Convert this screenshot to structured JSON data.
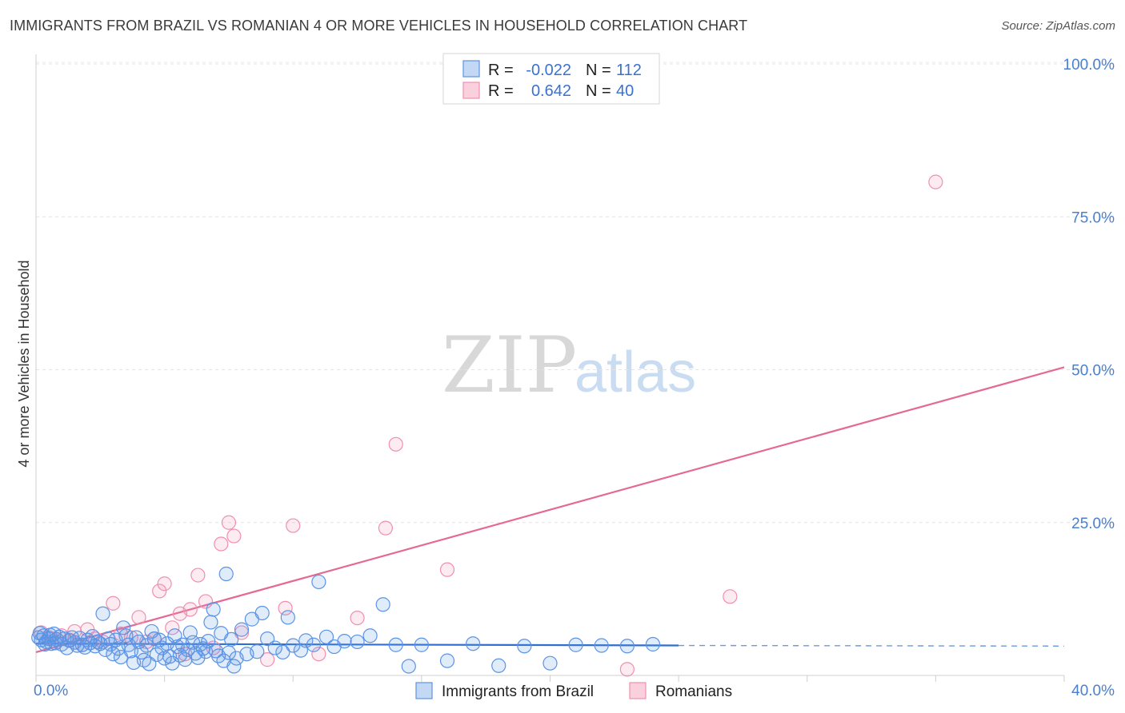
{
  "title": "IMMIGRANTS FROM BRAZIL VS ROMANIAN 4 OR MORE VEHICLES IN HOUSEHOLD CORRELATION CHART",
  "source": "Source: ZipAtlas.com",
  "watermark": {
    "zip": "ZIP",
    "atlas": "atlas"
  },
  "legend": {
    "rows": [
      {
        "r_label": "R =",
        "r_value": "-0.022",
        "n_label": "N =",
        "n_value": "112"
      },
      {
        "r_label": "R =",
        "r_value": "0.642",
        "n_label": "N =",
        "n_value": "40"
      }
    ]
  },
  "bottom_legend": [
    "Immigrants from Brazil",
    "Romanians"
  ],
  "chart_data": {
    "type": "scatter",
    "xlabel": "",
    "ylabel": "4 or more Vehicles in Household",
    "xlim": [
      0,
      40
    ],
    "ylim": [
      0,
      100
    ],
    "x_tick_labels": [
      {
        "value": 0,
        "label": "0.0%"
      },
      {
        "value": 40,
        "label": "40.0%"
      }
    ],
    "y_tick_labels": [
      {
        "value": 25,
        "label": "25.0%"
      },
      {
        "value": 50,
        "label": "50.0%"
      },
      {
        "value": 75,
        "label": "75.0%"
      },
      {
        "value": 100,
        "label": "100.0%"
      }
    ],
    "colors": {
      "blue": "#5b93e6",
      "blue_line": "#2f6fd0",
      "pink": "#f08fb0",
      "pink_line": "#e46995"
    },
    "series": [
      {
        "name": "Immigrants from Brazil",
        "trend": {
          "x0": 0,
          "y0": 5.2,
          "x1": 25,
          "y1": 4.9,
          "dash_to": 40,
          "dash_y": 4.8
        },
        "points": [
          [
            0.1,
            6.2
          ],
          [
            0.2,
            5.8
          ],
          [
            0.3,
            6.5
          ],
          [
            0.4,
            5.5
          ],
          [
            0.5,
            6.0
          ],
          [
            0.6,
            5.2
          ],
          [
            0.7,
            6.8
          ],
          [
            0.8,
            5.9
          ],
          [
            0.9,
            6.3
          ],
          [
            1.0,
            5.1
          ],
          [
            1.1,
            6.0
          ],
          [
            1.2,
            4.5
          ],
          [
            1.3,
            5.7
          ],
          [
            1.4,
            6.2
          ],
          [
            1.5,
            5.4
          ],
          [
            1.6,
            4.9
          ],
          [
            1.7,
            6.1
          ],
          [
            1.8,
            5.0
          ],
          [
            1.9,
            4.6
          ],
          [
            2.0,
            5.8
          ],
          [
            2.1,
            5.3
          ],
          [
            2.2,
            6.4
          ],
          [
            2.3,
            4.8
          ],
          [
            2.4,
            5.5
          ],
          [
            2.5,
            5.2
          ],
          [
            2.6,
            10.1
          ],
          [
            2.7,
            4.2
          ],
          [
            2.8,
            6.0
          ],
          [
            2.9,
            5.1
          ],
          [
            3.0,
            3.5
          ],
          [
            3.1,
            5.8
          ],
          [
            3.2,
            4.4
          ],
          [
            3.3,
            3.0
          ],
          [
            3.4,
            7.8
          ],
          [
            3.5,
            6.5
          ],
          [
            3.6,
            5.0
          ],
          [
            3.7,
            4.0
          ],
          [
            3.8,
            2.1
          ],
          [
            3.9,
            6.2
          ],
          [
            4.0,
            5.5
          ],
          [
            4.1,
            3.8
          ],
          [
            4.2,
            2.5
          ],
          [
            4.3,
            4.9
          ],
          [
            4.4,
            1.9
          ],
          [
            4.5,
            7.2
          ],
          [
            4.6,
            6.0
          ],
          [
            4.7,
            3.4
          ],
          [
            4.8,
            5.8
          ],
          [
            4.9,
            4.5
          ],
          [
            5.0,
            2.8
          ],
          [
            5.1,
            5.2
          ],
          [
            5.2,
            3.1
          ],
          [
            5.3,
            2.0
          ],
          [
            5.4,
            6.5
          ],
          [
            5.5,
            4.7
          ],
          [
            5.6,
            3.3
          ],
          [
            5.7,
            5.0
          ],
          [
            5.8,
            2.6
          ],
          [
            5.9,
            4.2
          ],
          [
            6.0,
            7.0
          ],
          [
            6.1,
            5.4
          ],
          [
            6.2,
            3.6
          ],
          [
            6.3,
            2.9
          ],
          [
            6.4,
            5.1
          ],
          [
            6.5,
            4.4
          ],
          [
            6.6,
            3.9
          ],
          [
            6.7,
            5.6
          ],
          [
            6.8,
            8.7
          ],
          [
            6.9,
            10.8
          ],
          [
            7.0,
            4.0
          ],
          [
            7.1,
            3.2
          ],
          [
            7.2,
            6.9
          ],
          [
            7.3,
            2.4
          ],
          [
            7.4,
            16.6
          ],
          [
            7.5,
            3.7
          ],
          [
            7.6,
            5.9
          ],
          [
            7.7,
            1.5
          ],
          [
            7.8,
            2.8
          ],
          [
            8.0,
            7.5
          ],
          [
            8.2,
            3.5
          ],
          [
            8.4,
            9.2
          ],
          [
            8.6,
            3.9
          ],
          [
            8.8,
            10.2
          ],
          [
            9.0,
            6.0
          ],
          [
            9.3,
            4.5
          ],
          [
            9.6,
            3.8
          ],
          [
            9.8,
            9.5
          ],
          [
            10.0,
            4.9
          ],
          [
            10.3,
            4.1
          ],
          [
            10.5,
            5.7
          ],
          [
            10.8,
            5.0
          ],
          [
            11.0,
            15.3
          ],
          [
            11.3,
            6.3
          ],
          [
            11.6,
            4.7
          ],
          [
            12.0,
            5.6
          ],
          [
            12.5,
            5.5
          ],
          [
            13.0,
            6.5
          ],
          [
            13.5,
            11.6
          ],
          [
            14.0,
            5.0
          ],
          [
            14.5,
            1.5
          ],
          [
            15.0,
            5.0
          ],
          [
            16.0,
            2.4
          ],
          [
            17.0,
            5.2
          ],
          [
            18.0,
            1.6
          ],
          [
            19.0,
            4.8
          ],
          [
            20.0,
            2.0
          ],
          [
            21.0,
            5.0
          ],
          [
            22.0,
            4.9
          ],
          [
            23.0,
            4.8
          ],
          [
            24.0,
            5.1
          ],
          [
            0.15,
            6.9
          ],
          [
            0.35,
            5.1
          ],
          [
            0.55,
            6.6
          ],
          [
            0.75,
            5.3
          ]
        ]
      },
      {
        "name": "Romanians",
        "trend": {
          "x0": 0,
          "y0": 3.8,
          "x1": 40,
          "y1": 50.4
        },
        "points": [
          [
            0.2,
            7.0
          ],
          [
            0.5,
            6.2
          ],
          [
            0.8,
            5.5
          ],
          [
            1.0,
            6.5
          ],
          [
            1.3,
            5.8
          ],
          [
            1.5,
            7.2
          ],
          [
            1.8,
            5.0
          ],
          [
            2.0,
            7.5
          ],
          [
            2.3,
            6.0
          ],
          [
            2.6,
            5.5
          ],
          [
            3.0,
            11.8
          ],
          [
            3.3,
            6.8
          ],
          [
            3.7,
            6.2
          ],
          [
            4.0,
            9.5
          ],
          [
            4.3,
            5.5
          ],
          [
            4.6,
            6.0
          ],
          [
            4.8,
            13.8
          ],
          [
            5.0,
            15.0
          ],
          [
            5.3,
            7.8
          ],
          [
            5.6,
            10.1
          ],
          [
            5.8,
            3.5
          ],
          [
            6.0,
            10.8
          ],
          [
            6.3,
            16.4
          ],
          [
            6.6,
            12.1
          ],
          [
            6.9,
            4.5
          ],
          [
            7.2,
            21.5
          ],
          [
            7.5,
            25.0
          ],
          [
            7.7,
            22.8
          ],
          [
            8.0,
            7.0
          ],
          [
            9.0,
            2.6
          ],
          [
            9.7,
            11.0
          ],
          [
            10.0,
            24.5
          ],
          [
            11.0,
            3.5
          ],
          [
            12.5,
            9.4
          ],
          [
            13.6,
            24.1
          ],
          [
            14.0,
            37.8
          ],
          [
            16.0,
            17.3
          ],
          [
            23.0,
            1.0
          ],
          [
            27.0,
            12.9
          ],
          [
            35.0,
            80.7
          ]
        ]
      }
    ]
  }
}
